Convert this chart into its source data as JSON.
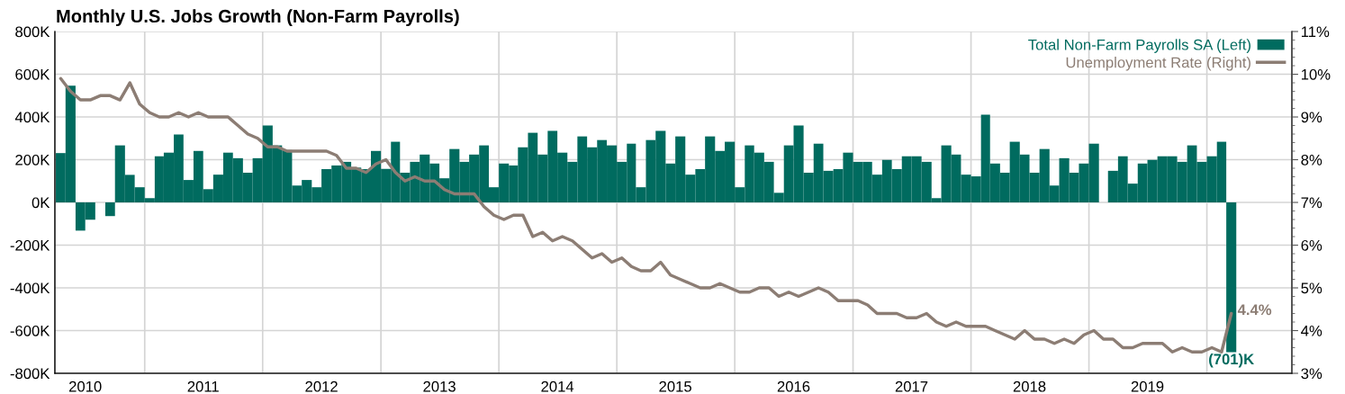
{
  "chart_data": {
    "type": "bar",
    "title": "Monthly U.S. Jobs Growth (Non-Farm Payrolls)",
    "x": [
      "2010-04",
      "2010-05",
      "2010-06",
      "2010-07",
      "2010-08",
      "2010-09",
      "2010-10",
      "2010-11",
      "2010-12",
      "2011-01",
      "2011-02",
      "2011-03",
      "2011-04",
      "2011-05",
      "2011-06",
      "2011-07",
      "2011-08",
      "2011-09",
      "2011-10",
      "2011-11",
      "2011-12",
      "2012-01",
      "2012-02",
      "2012-03",
      "2012-04",
      "2012-05",
      "2012-06",
      "2012-07",
      "2012-08",
      "2012-09",
      "2012-10",
      "2012-11",
      "2012-12",
      "2013-01",
      "2013-02",
      "2013-03",
      "2013-04",
      "2013-05",
      "2013-06",
      "2013-07",
      "2013-08",
      "2013-09",
      "2013-10",
      "2013-11",
      "2013-12",
      "2014-01",
      "2014-02",
      "2014-03",
      "2014-04",
      "2014-05",
      "2014-06",
      "2014-07",
      "2014-08",
      "2014-09",
      "2014-10",
      "2014-11",
      "2014-12",
      "2015-01",
      "2015-02",
      "2015-03",
      "2015-04",
      "2015-05",
      "2015-06",
      "2015-07",
      "2015-08",
      "2015-09",
      "2015-10",
      "2015-11",
      "2015-12",
      "2016-01",
      "2016-02",
      "2016-03",
      "2016-04",
      "2016-05",
      "2016-06",
      "2016-07",
      "2016-08",
      "2016-09",
      "2016-10",
      "2016-11",
      "2016-12",
      "2017-01",
      "2017-02",
      "2017-03",
      "2017-04",
      "2017-05",
      "2017-06",
      "2017-07",
      "2017-08",
      "2017-09",
      "2017-10",
      "2017-11",
      "2017-12",
      "2018-01",
      "2018-02",
      "2018-03",
      "2018-04",
      "2018-05",
      "2018-06",
      "2018-07",
      "2018-08",
      "2018-09",
      "2018-10",
      "2018-11",
      "2018-12",
      "2019-01",
      "2019-02",
      "2019-03",
      "2019-04",
      "2019-05",
      "2019-06",
      "2019-07",
      "2019-08",
      "2019-09",
      "2019-10",
      "2019-11",
      "2019-12",
      "2020-01",
      "2020-02",
      "2020-03"
    ],
    "series": [
      {
        "name": "Total Non-Farm Payrolls SA (Left)",
        "color": "#006b5f",
        "values": [
          231,
          546,
          -132,
          -81,
          0,
          -64,
          267,
          129,
          71,
          20,
          216,
          233,
          318,
          105,
          241,
          62,
          130,
          233,
          207,
          139,
          207,
          360,
          267,
          245,
          79,
          105,
          71,
          156,
          173,
          190,
          163,
          156,
          241,
          157,
          284,
          139,
          190,
          224,
          182,
          113,
          250,
          190,
          224,
          267,
          71,
          182,
          173,
          258,
          326,
          224,
          335,
          233,
          190,
          309,
          258,
          292,
          267,
          190,
          275,
          71,
          292,
          335,
          182,
          309,
          130,
          156,
          309,
          241,
          284,
          71,
          267,
          233,
          190,
          45,
          267,
          360,
          139,
          275,
          148,
          156,
          233,
          190,
          190,
          130,
          199,
          156,
          216,
          216,
          190,
          20,
          267,
          224,
          130,
          122,
          411,
          182,
          139,
          284,
          224,
          139,
          250,
          79,
          207,
          139,
          182,
          275,
          0,
          148,
          216,
          88,
          182,
          199,
          216,
          216,
          190,
          267,
          190,
          216,
          284,
          -701
        ],
        "value_labels": [
          null,
          null,
          null,
          null,
          null,
          null,
          null,
          null,
          null,
          null,
          null,
          null,
          null,
          null,
          null,
          null,
          null,
          null,
          null,
          null,
          null,
          null,
          null,
          null,
          null,
          null,
          null,
          null,
          null,
          null,
          null,
          null,
          null,
          null,
          null,
          null,
          null,
          null,
          null,
          null,
          null,
          null,
          null,
          null,
          null,
          null,
          null,
          null,
          null,
          null,
          null,
          null,
          null,
          null,
          null,
          null,
          null,
          null,
          null,
          null,
          null,
          null,
          null,
          null,
          null,
          null,
          null,
          null,
          null,
          null,
          null,
          null,
          null,
          null,
          null,
          null,
          null,
          null,
          null,
          null,
          null,
          null,
          null,
          null,
          null,
          null,
          null,
          null,
          null,
          null,
          null,
          null,
          null,
          null,
          null,
          null,
          null,
          null,
          null,
          null,
          null,
          null,
          null,
          null,
          null,
          null,
          null,
          null,
          null,
          null,
          null,
          null,
          null,
          null,
          null,
          null,
          null,
          null,
          null,
          "(701)K"
        ]
      },
      {
        "name": "Unemployment Rate (Right)",
        "type": "line",
        "axis": "y2",
        "color": "#8c7d74",
        "values": [
          9.9,
          9.6,
          9.4,
          9.4,
          9.5,
          9.5,
          9.4,
          9.8,
          9.3,
          9.1,
          9.0,
          9.0,
          9.1,
          9.0,
          9.1,
          9.0,
          9.0,
          9.0,
          8.8,
          8.6,
          8.5,
          8.3,
          8.3,
          8.2,
          8.2,
          8.2,
          8.2,
          8.2,
          8.1,
          7.8,
          7.8,
          7.7,
          7.9,
          8.0,
          7.7,
          7.5,
          7.6,
          7.5,
          7.5,
          7.3,
          7.2,
          7.2,
          7.2,
          6.9,
          6.7,
          6.6,
          6.7,
          6.7,
          6.2,
          6.3,
          6.1,
          6.2,
          6.1,
          5.9,
          5.7,
          5.8,
          5.6,
          5.7,
          5.5,
          5.4,
          5.4,
          5.6,
          5.3,
          5.2,
          5.1,
          5.0,
          5.0,
          5.1,
          5.0,
          4.9,
          4.9,
          5.0,
          5.0,
          4.8,
          4.9,
          4.8,
          4.9,
          5.0,
          4.9,
          4.7,
          4.7,
          4.7,
          4.6,
          4.4,
          4.4,
          4.4,
          4.3,
          4.3,
          4.4,
          4.2,
          4.1,
          4.2,
          4.1,
          4.1,
          4.1,
          4.0,
          3.9,
          3.8,
          4.0,
          3.8,
          3.8,
          3.7,
          3.8,
          3.7,
          3.9,
          4.0,
          3.8,
          3.8,
          3.6,
          3.6,
          3.7,
          3.7,
          3.7,
          3.5,
          3.6,
          3.5,
          3.5,
          3.6,
          3.5,
          4.4
        ],
        "value_labels": [
          null,
          null,
          null,
          null,
          null,
          null,
          null,
          null,
          null,
          null,
          null,
          null,
          null,
          null,
          null,
          null,
          null,
          null,
          null,
          null,
          null,
          null,
          null,
          null,
          null,
          null,
          null,
          null,
          null,
          null,
          null,
          null,
          null,
          null,
          null,
          null,
          null,
          null,
          null,
          null,
          null,
          null,
          null,
          null,
          null,
          null,
          null,
          null,
          null,
          null,
          null,
          null,
          null,
          null,
          null,
          null,
          null,
          null,
          null,
          null,
          null,
          null,
          null,
          null,
          null,
          null,
          null,
          null,
          null,
          null,
          null,
          null,
          null,
          null,
          null,
          null,
          null,
          null,
          null,
          null,
          null,
          null,
          null,
          null,
          null,
          null,
          null,
          null,
          null,
          null,
          null,
          null,
          null,
          null,
          null,
          null,
          null,
          null,
          null,
          null,
          null,
          null,
          null,
          null,
          null,
          null,
          null,
          null,
          null,
          null,
          null,
          null,
          null,
          null,
          null,
          null,
          null,
          null,
          null,
          "4.4%"
        ]
      }
    ],
    "xlim": [
      "2010-03-29",
      "2020-09-20"
    ],
    "xticks": [
      {
        "value": "2010-07-01",
        "label": "2010"
      },
      {
        "value": "2011-01-01",
        "label": null
      },
      {
        "value": "2011-07-01",
        "label": "2011"
      },
      {
        "value": "2012-01-01",
        "label": null
      },
      {
        "value": "2012-07-01",
        "label": "2012"
      },
      {
        "value": "2013-01-01",
        "label": null
      },
      {
        "value": "2013-07-01",
        "label": "2013"
      },
      {
        "value": "2014-01-01",
        "label": null
      },
      {
        "value": "2014-07-01",
        "label": "2014"
      },
      {
        "value": "2015-01-01",
        "label": null
      },
      {
        "value": "2015-07-01",
        "label": "2015"
      },
      {
        "value": "2016-01-01",
        "label": null
      },
      {
        "value": "2016-07-01",
        "label": "2016"
      },
      {
        "value": "2017-01-01",
        "label": null
      },
      {
        "value": "2017-07-01",
        "label": "2017"
      },
      {
        "value": "2018-01-01",
        "label": null
      },
      {
        "value": "2018-07-01",
        "label": "2018"
      },
      {
        "value": "2019-01-01",
        "label": null
      },
      {
        "value": "2019-07-01",
        "label": "2019"
      },
      {
        "value": "2020-01-01",
        "label": null
      }
    ],
    "ylim": [
      -800,
      800
    ],
    "yticks": [
      {
        "value": -800,
        "label": "-800K"
      },
      {
        "value": -600,
        "label": "-600K"
      },
      {
        "value": -400,
        "label": "-400K"
      },
      {
        "value": -200,
        "label": "-200K"
      },
      {
        "value": 0,
        "label": "0K"
      },
      {
        "value": 200,
        "label": "200K"
      },
      {
        "value": 400,
        "label": "400K"
      },
      {
        "value": 600,
        "label": "600K"
      },
      {
        "value": 800,
        "label": "800K"
      }
    ],
    "y2lim": [
      3,
      11
    ],
    "y2ticks": [
      {
        "value": 3,
        "label": "3%"
      },
      {
        "value": 4,
        "label": "4%"
      },
      {
        "value": 5,
        "label": "5%"
      },
      {
        "value": 6,
        "label": "6%"
      },
      {
        "value": 7,
        "label": "7%"
      },
      {
        "value": 8,
        "label": "8%"
      },
      {
        "value": 9,
        "label": "9%"
      },
      {
        "value": 10,
        "label": "10%"
      },
      {
        "value": 11,
        "label": "11%"
      }
    ],
    "grid": true,
    "legend": "top right"
  }
}
